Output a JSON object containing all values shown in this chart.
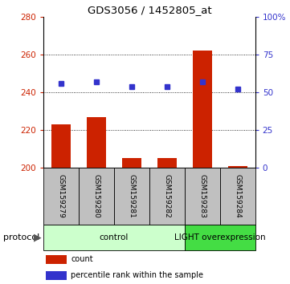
{
  "title": "GDS3056 / 1452805_at",
  "samples": [
    "GSM159279",
    "GSM159280",
    "GSM159281",
    "GSM159282",
    "GSM159283",
    "GSM159284"
  ],
  "count_values": [
    223,
    227,
    205,
    205,
    262,
    201
  ],
  "percentile_values": [
    56,
    57,
    54,
    54,
    57,
    52
  ],
  "ylim_left": [
    200,
    280
  ],
  "ylim_right": [
    0,
    100
  ],
  "yticks_left": [
    200,
    220,
    240,
    260,
    280
  ],
  "yticks_right": [
    0,
    25,
    50,
    75,
    100
  ],
  "ytick_labels_right": [
    "0",
    "25",
    "50",
    "75",
    "100%"
  ],
  "bar_color": "#cc2200",
  "dot_color": "#3333cc",
  "bg_xlabel": "#c0c0c0",
  "ctrl_color": "#ccffcc",
  "light_color": "#44dd44",
  "protocol_label": "protocol",
  "ctrl_label": "control",
  "light_label": "LIGHT overexpression",
  "legend_count": "count",
  "legend_pct": "percentile rank within the sample",
  "grid_yticks": [
    220,
    240,
    260
  ],
  "n_ctrl": 4,
  "n_light": 2
}
